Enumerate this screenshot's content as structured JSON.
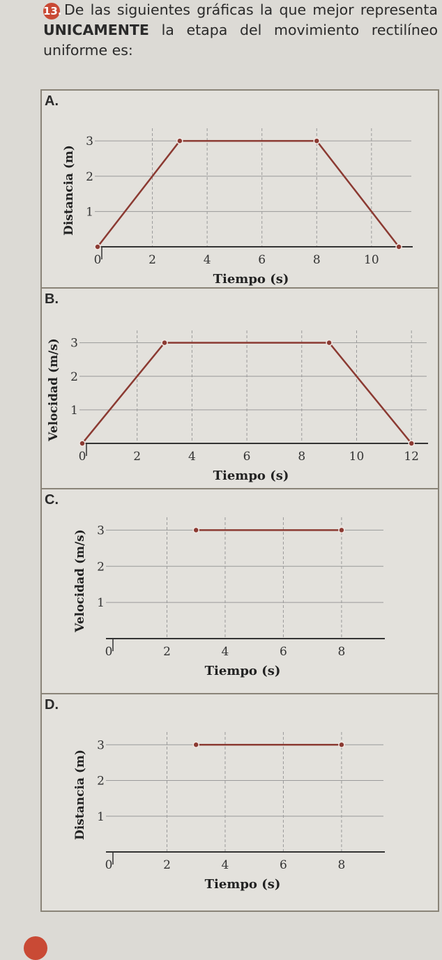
{
  "question": {
    "number": "13.",
    "text_before": "De las siguientes gráficas la que mejor representa ",
    "emphasis": "UNICAMENTE",
    "text_after": " la etapa del movimiento rectilíneo uniforme es:"
  },
  "colors": {
    "line": "#8b3a32",
    "accent": "#c94a35",
    "grid": "#9a9a9a"
  },
  "chart_data": [
    {
      "letter": "A.",
      "type": "line",
      "ylabel": "Distancia (m)",
      "xlabel": "Tiempo (s)",
      "xticks": [
        "0",
        "2",
        "4",
        "6",
        "8",
        "10"
      ],
      "yticks": [
        "1",
        "2",
        "3"
      ],
      "xlim": [
        0,
        11.2
      ],
      "ylim": [
        0,
        3.2
      ],
      "x": [
        0,
        3,
        8,
        11
      ],
      "y": [
        0,
        3,
        3,
        0
      ]
    },
    {
      "letter": "B.",
      "type": "line",
      "ylabel": "Velocidad (m/s)",
      "xlabel": "Tiempo (s)",
      "xticks": [
        "0",
        "2",
        "4",
        "6",
        "8",
        "10",
        "12"
      ],
      "yticks": [
        "1",
        "2",
        "3"
      ],
      "xlim": [
        0,
        12.3
      ],
      "ylim": [
        0,
        3.2
      ],
      "x": [
        0,
        3,
        9,
        12
      ],
      "y": [
        0,
        3,
        3,
        0
      ]
    },
    {
      "letter": "C.",
      "type": "line",
      "ylabel": "Velocidad (m/s)",
      "xlabel": "Tiempo (s)",
      "xticks": [
        "0",
        "2",
        "4",
        "6",
        "8"
      ],
      "yticks": [
        "1",
        "2",
        "3"
      ],
      "xlim": [
        0,
        9.2
      ],
      "ylim": [
        0,
        3.2
      ],
      "x": [
        3,
        8
      ],
      "y": [
        3,
        3
      ]
    },
    {
      "letter": "D.",
      "type": "line",
      "ylabel": "Distancia (m)",
      "xlabel": "Tiempo (s)",
      "xticks": [
        "0",
        "2",
        "4",
        "6",
        "8"
      ],
      "yticks": [
        "1",
        "2",
        "3"
      ],
      "xlim": [
        0,
        9.2
      ],
      "ylim": [
        0,
        3.2
      ],
      "x": [
        3,
        8
      ],
      "y": [
        3,
        3
      ]
    }
  ]
}
